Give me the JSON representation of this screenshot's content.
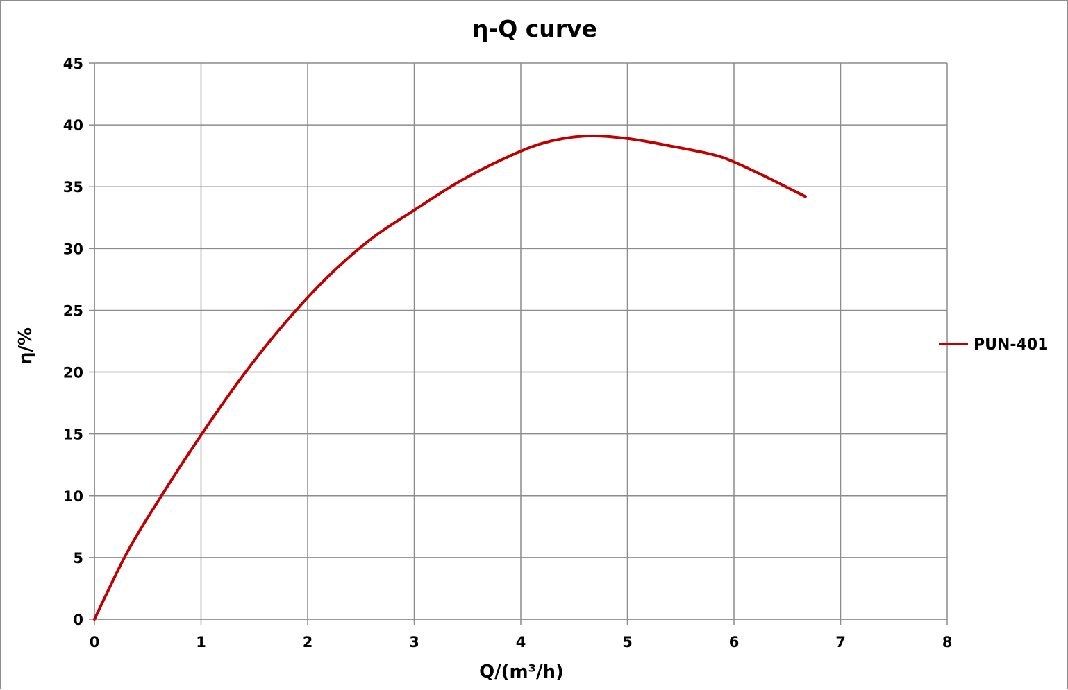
{
  "chart_data": {
    "type": "line",
    "title": "η-Q  curve",
    "xlabel": "Q/(m³/h)",
    "ylabel": "η/%",
    "xlim": [
      0,
      8
    ],
    "ylim": [
      0,
      45
    ],
    "xticks": [
      0,
      1,
      2,
      3,
      4,
      5,
      6,
      7,
      8
    ],
    "yticks": [
      0,
      5,
      10,
      15,
      20,
      25,
      30,
      35,
      40,
      45
    ],
    "grid": true,
    "legend_position": "right",
    "colors": {
      "series": "#c00000",
      "grid": "#8c8c8c"
    },
    "series": [
      {
        "name": "PUN-401",
        "color": "#c00000",
        "x": [
          0,
          0.3,
          0.6,
          1.0,
          1.4,
          1.8,
          2.2,
          2.6,
          3.0,
          3.4,
          3.8,
          4.2,
          4.6,
          5.0,
          5.4,
          5.8,
          6.0,
          6.3,
          6.67
        ],
        "y": [
          0,
          5.3,
          9.6,
          14.9,
          19.8,
          24.1,
          27.8,
          30.8,
          33.1,
          35.3,
          37.1,
          38.5,
          39.1,
          38.9,
          38.3,
          37.6,
          37.0,
          35.8,
          34.2
        ]
      }
    ]
  }
}
